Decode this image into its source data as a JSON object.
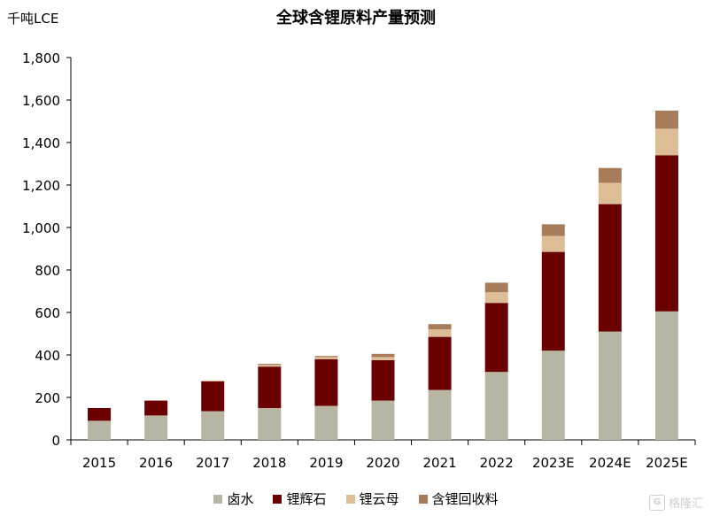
{
  "chart_data": {
    "type": "bar",
    "stacked": true,
    "title": "全球含锂原料产量预测",
    "unit_label": "千吨LCE",
    "categories": [
      "2015",
      "2016",
      "2017",
      "2018",
      "2019",
      "2020",
      "2021",
      "2022",
      "2023E",
      "2024E",
      "2025E"
    ],
    "series": [
      {
        "name": "卤水",
        "color": "#b8b5a3",
        "values": [
          90,
          115,
          135,
          150,
          160,
          185,
          235,
          320,
          420,
          510,
          605
        ]
      },
      {
        "name": "锂辉石",
        "color": "#6b0000",
        "values": [
          60,
          70,
          140,
          195,
          220,
          190,
          250,
          325,
          465,
          600,
          735
        ]
      },
      {
        "name": "锂云母",
        "color": "#dcbd95",
        "values": [
          0,
          0,
          5,
          8,
          10,
          15,
          35,
          50,
          75,
          100,
          125
        ]
      },
      {
        "name": "含锂回收料",
        "color": "#a67c5b",
        "values": [
          0,
          0,
          0,
          5,
          5,
          15,
          25,
          45,
          55,
          70,
          85
        ]
      }
    ],
    "ylim": [
      0,
      1800
    ],
    "yticks": [
      0,
      200,
      400,
      600,
      800,
      1000,
      1200,
      1400,
      1600,
      1800
    ],
    "ytick_labels": [
      "0",
      "200",
      "400",
      "600",
      "800",
      "1,000",
      "1,200",
      "1,400",
      "1,600",
      "1,800"
    ],
    "grid": false,
    "legend_position": "bottom"
  },
  "watermark": {
    "logo": "G",
    "text": "格隆汇"
  }
}
